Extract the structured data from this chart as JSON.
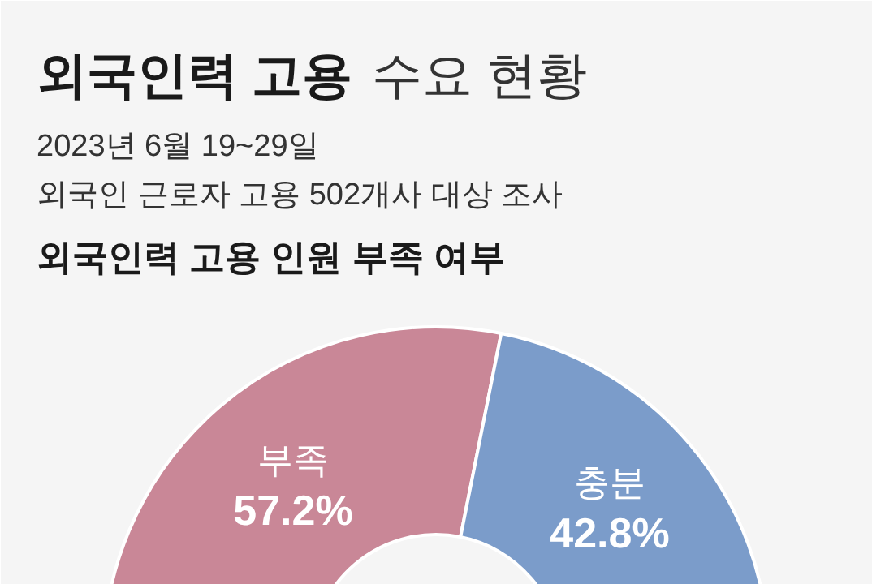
{
  "chart_data": {
    "type": "donut",
    "title": "외국인력 고용 수요 현황",
    "subtitle": "2023년 6월 19~29일\n외국인 근로자 고용 502개사 대상 조사",
    "annotations": [
      "외국인력 고용 인원 부족 여부"
    ],
    "categories": [
      "부족",
      "충분"
    ],
    "values": [
      57.2,
      42.8
    ],
    "colors": [
      "#c98797",
      "#7b9cca"
    ],
    "value_labels": [
      "57.2%",
      "42.8%"
    ]
  }
}
